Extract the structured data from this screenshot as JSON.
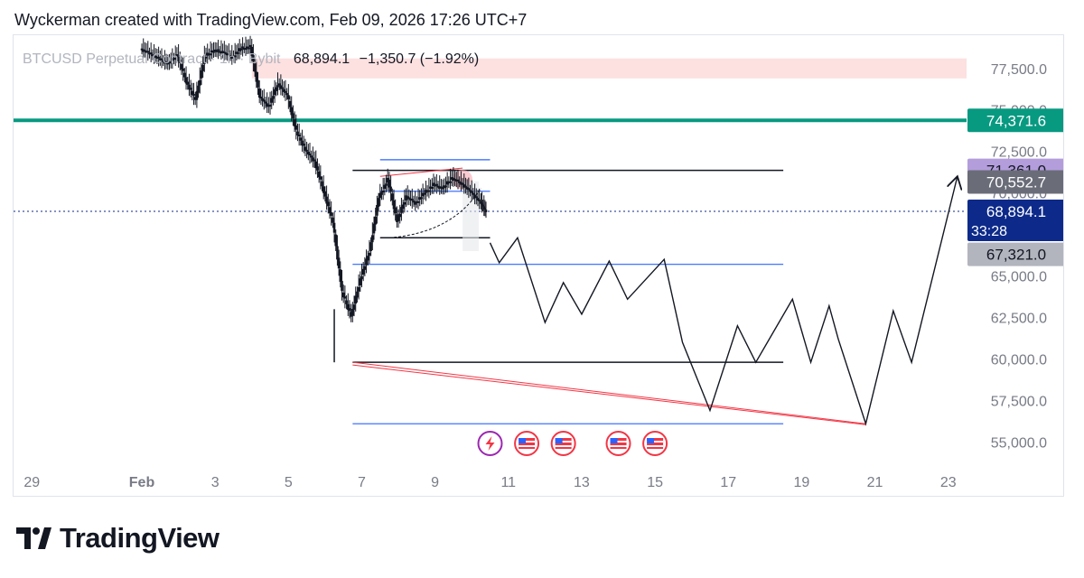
{
  "header": {
    "attribution": "Wyckerman created with TradingView.com, Feb 09, 2026 17:26 UTC+7"
  },
  "legend": {
    "symbol": "BTCUSD Perpetual Contract · 1h · Bybit",
    "last": "68,894.1",
    "change": "−1,350.7 (−1.92%)"
  },
  "brand": {
    "name": "TradingView",
    "logo_icon": "tradingview-logo-icon"
  },
  "colors": {
    "bg": "#ffffff",
    "candle": "#131722",
    "teal_line": "#089981",
    "blue_line": "#2962ff",
    "red_line": "#f23645",
    "red_zone": "#fde0e0",
    "pill_purple": "#b39ddb",
    "pill_gray": "#6a6d78",
    "pill_navy": "#0d2a8a",
    "pill_lightgray": "#b2b5be",
    "axis_text": "#787b86"
  },
  "chart_data": {
    "type": "candlestick",
    "x_scale": "date",
    "xlim": [
      "2026-01-28T12:00",
      "2026-02-23T12:00"
    ],
    "ylim": [
      53500,
      79500
    ],
    "x_ticks": [
      {
        "label": "29",
        "date": "2026-01-29T00:00"
      },
      {
        "label": "Feb",
        "date": "2026-02-01T00:00",
        "bold": true
      },
      {
        "label": "3",
        "date": "2026-02-03T00:00"
      },
      {
        "label": "5",
        "date": "2026-02-05T00:00"
      },
      {
        "label": "7",
        "date": "2026-02-07T00:00"
      },
      {
        "label": "9",
        "date": "2026-02-09T00:00"
      },
      {
        "label": "11",
        "date": "2026-02-11T00:00"
      },
      {
        "label": "13",
        "date": "2026-02-13T00:00"
      },
      {
        "label": "15",
        "date": "2026-02-15T00:00"
      },
      {
        "label": "17",
        "date": "2026-02-17T00:00"
      },
      {
        "label": "19",
        "date": "2026-02-19T00:00"
      },
      {
        "label": "21",
        "date": "2026-02-21T00:00"
      },
      {
        "label": "23",
        "date": "2026-02-23T00:00"
      }
    ],
    "y_ticks": [
      {
        "label": "77,500.0",
        "value": 77500
      },
      {
        "label": "75,000.0",
        "value": 75000
      },
      {
        "label": "72,500.0",
        "value": 72500
      },
      {
        "label": "70,000.0",
        "value": 70000
      },
      {
        "label": "65,000.0",
        "value": 65000
      },
      {
        "label": "62,500.0",
        "value": 62500
      },
      {
        "label": "60,000.0",
        "value": 60000
      },
      {
        "label": "57,500.0",
        "value": 57500
      },
      {
        "label": "55,000.0",
        "value": 55000
      }
    ],
    "price_path": [
      [
        "2026-02-01T00:00",
        78700
      ],
      [
        "2026-02-01T06:00",
        78400
      ],
      [
        "2026-02-01T12:00",
        78100
      ],
      [
        "2026-02-01T18:00",
        77800
      ],
      [
        "2026-02-02T00:00",
        78300
      ],
      [
        "2026-02-02T06:00",
        76700
      ],
      [
        "2026-02-02T12:00",
        75600
      ],
      [
        "2026-02-02T18:00",
        78200
      ],
      [
        "2026-02-03T00:00",
        78600
      ],
      [
        "2026-02-03T06:00",
        78500
      ],
      [
        "2026-02-03T12:00",
        78200
      ],
      [
        "2026-02-03T18:00",
        78700
      ],
      [
        "2026-02-04T00:00",
        78800
      ],
      [
        "2026-02-04T06:00",
        75800
      ],
      [
        "2026-02-04T12:00",
        75200
      ],
      [
        "2026-02-04T18:00",
        76600
      ],
      [
        "2026-02-05T00:00",
        75900
      ],
      [
        "2026-02-05T06:00",
        73700
      ],
      [
        "2026-02-05T12:00",
        72600
      ],
      [
        "2026-02-05T18:00",
        71900
      ],
      [
        "2026-02-06T00:00",
        70100
      ],
      [
        "2026-02-06T06:00",
        68200
      ],
      [
        "2026-02-06T12:00",
        64000
      ],
      [
        "2026-02-06T18:00",
        62600
      ],
      [
        "2026-02-07T00:00",
        64800
      ],
      [
        "2026-02-07T06:00",
        66500
      ],
      [
        "2026-02-07T12:00",
        69700
      ],
      [
        "2026-02-07T18:00",
        70800
      ],
      [
        "2026-02-08T00:00",
        68300
      ],
      [
        "2026-02-08T06:00",
        69800
      ],
      [
        "2026-02-08T12:00",
        69400
      ],
      [
        "2026-02-08T18:00",
        70000
      ],
      [
        "2026-02-09T00:00",
        70500
      ],
      [
        "2026-02-09T06:00",
        70300
      ],
      [
        "2026-02-09T12:00",
        70900
      ],
      [
        "2026-02-09T18:00",
        70600
      ],
      [
        "2026-02-10T00:00",
        70100
      ],
      [
        "2026-02-10T06:00",
        69500
      ],
      [
        "2026-02-10T10:00",
        68894.1
      ]
    ],
    "low_wick": {
      "date": "2026-02-06T06:00",
      "low": 59800
    },
    "horizontal_levels": [
      {
        "name": "resistance-teal",
        "price": 74371.6,
        "color": "teal"
      },
      {
        "name": "range-high",
        "price": 71361.0,
        "color": "black",
        "from": "2026-02-06T18:00",
        "to": "2026-02-18T12:00"
      },
      {
        "name": "blue-top",
        "price": 72000,
        "color": "blue",
        "from": "2026-02-07T12:00",
        "to": "2026-02-10T12:00"
      },
      {
        "name": "blue-mid",
        "price": 70100,
        "color": "blue",
        "from": "2026-02-07T12:00",
        "to": "2026-02-10T12:00"
      },
      {
        "name": "box-low",
        "price": 67300,
        "color": "black",
        "from": "2026-02-07T12:00",
        "to": "2026-02-10T12:00"
      },
      {
        "name": "blue-65700",
        "price": 65700,
        "color": "blue",
        "from": "2026-02-06T18:00",
        "to": "2026-02-18T12:00"
      },
      {
        "name": "range-low",
        "price": 59800,
        "color": "black",
        "from": "2026-02-06T18:00",
        "to": "2026-02-18T12:00"
      },
      {
        "name": "blue-56100",
        "price": 56100,
        "color": "blue",
        "from": "2026-02-06T18:00",
        "to": "2026-02-18T12:00"
      }
    ],
    "red_zone": {
      "from_price": 76900,
      "to_price": 78100,
      "from_date": "2026-02-04T00:00",
      "to_date": "2026-02-23T12:00"
    },
    "projection_path": [
      [
        "2026-02-10T12:00",
        67000
      ],
      [
        "2026-02-10T18:00",
        65800
      ],
      [
        "2026-02-11T06:00",
        67300
      ],
      [
        "2026-02-12T00:00",
        62200
      ],
      [
        "2026-02-12T12:00",
        64600
      ],
      [
        "2026-02-13T00:00",
        62700
      ],
      [
        "2026-02-13T18:00",
        65900
      ],
      [
        "2026-02-14T06:00",
        63600
      ],
      [
        "2026-02-15T06:00",
        66000
      ],
      [
        "2026-02-15T18:00",
        61000
      ],
      [
        "2026-02-16T12:00",
        56900
      ],
      [
        "2026-02-17T06:00",
        62000
      ],
      [
        "2026-02-17T18:00",
        59800
      ],
      [
        "2026-02-18T18:00",
        63600
      ],
      [
        "2026-02-19T06:00",
        59800
      ],
      [
        "2026-02-19T18:00",
        63200
      ],
      [
        "2026-02-20T00:00",
        61200
      ],
      [
        "2026-02-20T18:00",
        56100
      ],
      [
        "2026-02-21T12:00",
        62900
      ],
      [
        "2026-02-22T00:00",
        59800
      ],
      [
        "2026-02-23T06:00",
        71000
      ]
    ],
    "price_labels": [
      {
        "label": "74,371.6",
        "price": 74371.6,
        "style": "teal"
      },
      {
        "label": "71,361.0",
        "price": 71361.0,
        "style": "purple"
      },
      {
        "label": "70,552.7",
        "price": 70552.7,
        "style": "gray"
      },
      {
        "label": "68,894.1",
        "price": 68894.1,
        "style": "navy",
        "sub": "33:28"
      },
      {
        "label": "67,321.0",
        "price": 67321.0,
        "style": "lightgray"
      }
    ],
    "event_icons": [
      {
        "name": "lightning-event-icon",
        "date": "2026-02-10T12:00"
      },
      {
        "name": "us-flag-event-icon",
        "date": "2026-02-11T12:00"
      },
      {
        "name": "us-flag-event-icon",
        "date": "2026-02-12T12:00"
      },
      {
        "name": "us-flag-event-icon",
        "date": "2026-02-14T00:00"
      },
      {
        "name": "us-flag-event-icon",
        "date": "2026-02-15T00:00"
      }
    ]
  }
}
